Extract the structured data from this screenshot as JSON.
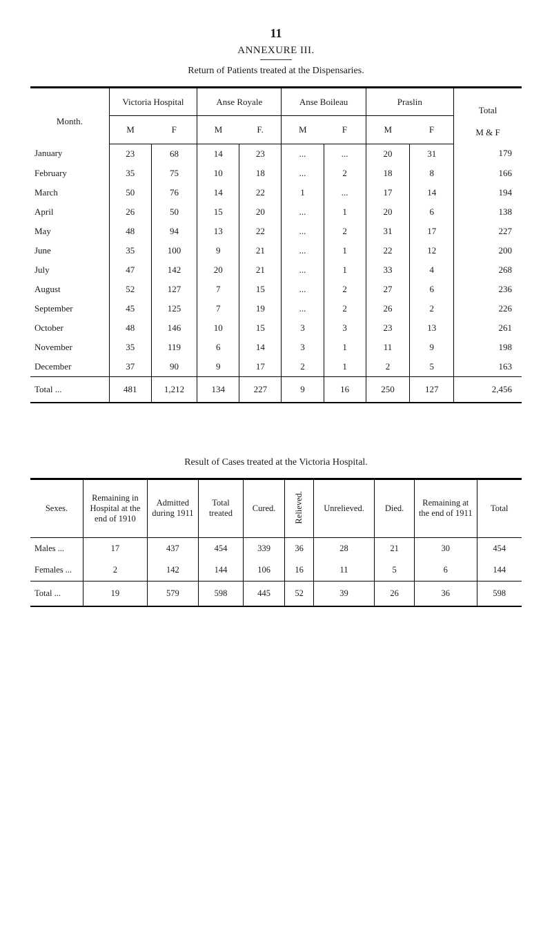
{
  "page_number": "11",
  "annexure_title": "ANNEXURE III.",
  "table1": {
    "caption": "Return of Patients treated at the Dispensaries.",
    "month_header": "Month.",
    "total_header": "Total",
    "groups": [
      {
        "label": "Victoria Hospital",
        "sub": [
          "M",
          "F"
        ]
      },
      {
        "label": "Anse Royale",
        "sub": [
          "M",
          "F."
        ]
      },
      {
        "label": "Anse Boileau",
        "sub": [
          "M",
          "F"
        ]
      },
      {
        "label": "Praslin",
        "sub": [
          "M",
          "F"
        ]
      }
    ],
    "total_sub": "M & F",
    "rows": [
      {
        "month": "January",
        "cells": [
          "23",
          "68",
          "14",
          "23",
          "...",
          "...",
          "20",
          "31"
        ],
        "total": "179"
      },
      {
        "month": "February",
        "cells": [
          "35",
          "75",
          "10",
          "18",
          "...",
          "2",
          "18",
          "8"
        ],
        "total": "166"
      },
      {
        "month": "March",
        "cells": [
          "50",
          "76",
          "14",
          "22",
          "1",
          "...",
          "17",
          "14"
        ],
        "total": "194"
      },
      {
        "month": "April",
        "cells": [
          "26",
          "50",
          "15",
          "20",
          "...",
          "1",
          "20",
          "6"
        ],
        "total": "138"
      },
      {
        "month": "May",
        "cells": [
          "48",
          "94",
          "13",
          "22",
          "...",
          "2",
          "31",
          "17"
        ],
        "total": "227"
      },
      {
        "month": "June",
        "cells": [
          "35",
          "100",
          "9",
          "21",
          "...",
          "1",
          "22",
          "12"
        ],
        "total": "200"
      },
      {
        "month": "July",
        "cells": [
          "47",
          "142",
          "20",
          "21",
          "...",
          "1",
          "33",
          "4"
        ],
        "total": "268"
      },
      {
        "month": "August",
        "cells": [
          "52",
          "127",
          "7",
          "15",
          "...",
          "2",
          "27",
          "6"
        ],
        "total": "236"
      },
      {
        "month": "September",
        "cells": [
          "45",
          "125",
          "7",
          "19",
          "...",
          "2",
          "26",
          "2"
        ],
        "total": "226"
      },
      {
        "month": "October",
        "cells": [
          "48",
          "146",
          "10",
          "15",
          "3",
          "3",
          "23",
          "13"
        ],
        "total": "261"
      },
      {
        "month": "November",
        "cells": [
          "35",
          "119",
          "6",
          "14",
          "3",
          "1",
          "11",
          "9"
        ],
        "total": "198"
      },
      {
        "month": "December",
        "cells": [
          "37",
          "90",
          "9",
          "17",
          "2",
          "1",
          "2",
          "5"
        ],
        "total": "163"
      }
    ],
    "total_row": {
      "label": "Total   ...",
      "cells": [
        "481",
        "1,212",
        "134",
        "227",
        "9",
        "16",
        "250",
        "127"
      ],
      "total": "2,456"
    }
  },
  "table2": {
    "caption": "Result of Cases treated at the Victoria Hospital.",
    "headers": {
      "sexes": "Sexes.",
      "remaining_start": "Remaining in Hospital at the end of 1910",
      "admitted": "Admitted during 1911",
      "total_treated": "Total treated",
      "cured": "Cured.",
      "relieved": "Relieved.",
      "unrelieved": "Unrelieved.",
      "died": "Died.",
      "remaining_end": "Remaining at the end of 1911",
      "total": "Total"
    },
    "rows": [
      {
        "sex": "Males   ...",
        "cells": [
          "17",
          "437",
          "454",
          "339",
          "36",
          "28",
          "21",
          "30",
          "454"
        ]
      },
      {
        "sex": "Females ...",
        "cells": [
          "2",
          "142",
          "144",
          "106",
          "16",
          "11",
          "5",
          "6",
          "144"
        ]
      }
    ],
    "total_row": {
      "label": "Total   ...",
      "cells": [
        "19",
        "579",
        "598",
        "445",
        "52",
        "39",
        "26",
        "36",
        "598"
      ]
    }
  },
  "colors": {
    "text": "#1a1a1a",
    "rule": "#000000",
    "background": "#ffffff"
  }
}
